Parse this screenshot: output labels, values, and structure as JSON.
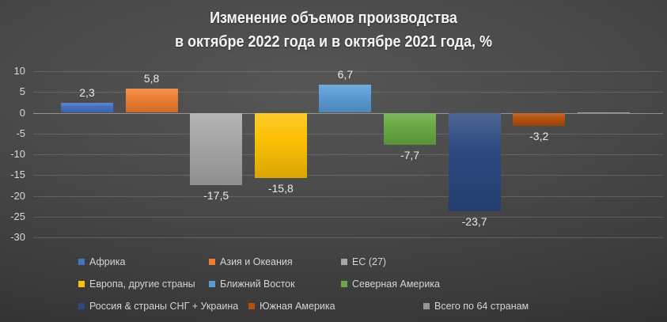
{
  "title": {
    "line1": "Изменение объемов производства",
    "line2": "в октябре 2022 года и в октябре 2021 года, %"
  },
  "chart_data": {
    "type": "bar",
    "title": "Изменение объемов производства в октябре 2022 года и в октябре 2021 года, %",
    "xlabel": "",
    "ylabel": "",
    "grid": true,
    "legend_position": "bottom",
    "y_axis": {
      "min": -30,
      "max": 10,
      "step": 5,
      "ticks": [
        {
          "value": 10,
          "label": "10"
        },
        {
          "value": 5,
          "label": "5"
        },
        {
          "value": 0,
          "label": "0"
        },
        {
          "value": -5,
          "label": "-5"
        },
        {
          "value": -10,
          "label": "-10"
        },
        {
          "value": -15,
          "label": "-15"
        },
        {
          "value": -20,
          "label": "-20"
        },
        {
          "value": -25,
          "label": "-25"
        },
        {
          "value": -30,
          "label": "-30"
        }
      ]
    },
    "series": [
      {
        "name": "Африка",
        "value": 2.3,
        "label": "2,3",
        "color": "#4472C4"
      },
      {
        "name": "Азия и Океания",
        "value": 5.8,
        "label": "5,8",
        "color": "#ED7D31"
      },
      {
        "name": "ЕС (27)",
        "value": -17.5,
        "label": "-17,5",
        "color": "#A6A6A6"
      },
      {
        "name": "Европа, другие страны",
        "value": -15.8,
        "label": "-15,8",
        "color": "#FCC004"
      },
      {
        "name": "Ближний Восток",
        "value": 6.7,
        "label": "6,7",
        "color": "#5B9BD5"
      },
      {
        "name": "Северная Америка",
        "value": -7.7,
        "label": "-7,7",
        "color": "#69A942"
      },
      {
        "name": "Россия & страны СНГ + Украина",
        "value": -23.7,
        "label": "-23,7",
        "color": "#2B4880"
      },
      {
        "name": "Южная Америка",
        "value": -3.2,
        "label": "-3,2",
        "color": "#B4500F"
      },
      {
        "name": "Всего по 64 странам",
        "value": 0,
        "label": "",
        "color": "#969696"
      }
    ],
    "legend_rows": [
      [
        0,
        1,
        2
      ],
      [
        3,
        4,
        5
      ],
      [
        6,
        7,
        8
      ]
    ]
  }
}
